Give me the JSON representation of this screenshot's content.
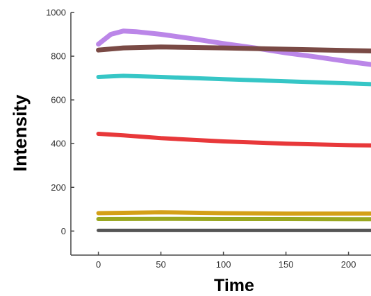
{
  "chart_data": {
    "type": "line",
    "xlabel": "Time",
    "ylabel": "Intensity",
    "xlim": [
      -22,
      218
    ],
    "ylim": [
      -110,
      1000
    ],
    "x_ticks": [
      0,
      50,
      100,
      150,
      200
    ],
    "y_ticks": [
      0,
      200,
      400,
      600,
      800,
      1000
    ],
    "x_tick_labels": [
      "0",
      "50",
      "100",
      "150",
      "200"
    ],
    "y_tick_labels": [
      "0",
      "200",
      "400",
      "600",
      "800",
      "1000"
    ],
    "grid": false,
    "legend": "none",
    "series": [
      {
        "color": "#bb86e8",
        "x": [
          0,
          10,
          20,
          30,
          50,
          75,
          100,
          125,
          150,
          175,
          200,
          218
        ],
        "values": [
          855,
          900,
          915,
          912,
          900,
          880,
          858,
          838,
          815,
          796,
          775,
          762
        ]
      },
      {
        "color": "#7a4a45",
        "x": [
          0,
          20,
          50,
          100,
          150,
          200,
          218
        ],
        "values": [
          828,
          838,
          842,
          838,
          832,
          826,
          824
        ]
      },
      {
        "color": "#36c6c6",
        "x": [
          0,
          20,
          50,
          100,
          150,
          200,
          218
        ],
        "values": [
          705,
          710,
          705,
          695,
          685,
          676,
          672
        ]
      },
      {
        "color": "#e8383a",
        "x": [
          0,
          20,
          50,
          100,
          150,
          200,
          218
        ],
        "values": [
          445,
          438,
          425,
          410,
          400,
          393,
          392
        ]
      },
      {
        "color": "#d4a017",
        "x": [
          0,
          50,
          100,
          150,
          200,
          218
        ],
        "values": [
          82,
          86,
          82,
          80,
          80,
          80
        ]
      },
      {
        "color": "#9aa820",
        "x": [
          0,
          50,
          100,
          150,
          200,
          218
        ],
        "values": [
          55,
          56,
          55,
          55,
          54,
          54
        ]
      },
      {
        "color": "#555555",
        "x": [
          0,
          50,
          100,
          150,
          200,
          218
        ],
        "values": [
          3,
          3,
          3,
          3,
          3,
          3
        ]
      }
    ]
  }
}
